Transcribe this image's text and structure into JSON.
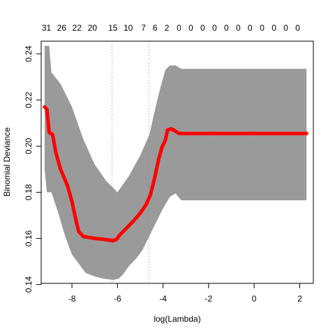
{
  "chart_data": {
    "type": "line",
    "title": "",
    "xlabel": "log(Lambda)",
    "ylabel": "Binomial Deviance",
    "xlim": [
      -9.35,
      2.6
    ],
    "ylim": [
      0.1405,
      0.2455
    ],
    "x_ticks": [
      -8,
      -6,
      -4,
      -2,
      0,
      2
    ],
    "x_tick_labels": [
      "-8",
      "-6",
      "-4",
      "-2",
      "0",
      "2"
    ],
    "y_ticks": [
      0.14,
      0.16,
      0.18,
      0.2,
      0.22,
      0.24
    ],
    "y_tick_labels": [
      "0.14",
      "0.16",
      "0.18",
      "0.20",
      "0.22",
      "0.24"
    ],
    "top_axis_labels": [
      {
        "x": -9.12,
        "label": "31"
      },
      {
        "x": -8.45,
        "label": "26"
      },
      {
        "x": -7.78,
        "label": "22"
      },
      {
        "x": -7.1,
        "label": "20"
      },
      {
        "x": -6.2,
        "label": "15"
      },
      {
        "x": -5.53,
        "label": "10"
      },
      {
        "x": -4.86,
        "label": "7"
      },
      {
        "x": -4.35,
        "label": "6"
      },
      {
        "x": -3.83,
        "label": "2"
      },
      {
        "x": -3.3,
        "label": "0"
      },
      {
        "x": -2.78,
        "label": "0"
      },
      {
        "x": -2.26,
        "label": "0"
      },
      {
        "x": -1.74,
        "label": "0"
      },
      {
        "x": -1.22,
        "label": "0"
      },
      {
        "x": -0.7,
        "label": "0"
      },
      {
        "x": -0.18,
        "label": "0"
      },
      {
        "x": 0.35,
        "label": "0"
      },
      {
        "x": 0.87,
        "label": "0"
      },
      {
        "x": 1.39,
        "label": "0"
      },
      {
        "x": 1.91,
        "label": "0"
      }
    ],
    "vlines": [
      -6.24,
      -4.62
    ],
    "band_upper": [
      [
        -9.2,
        0.2435
      ],
      [
        -9.0,
        0.2435
      ],
      [
        -8.9,
        0.232
      ],
      [
        -8.5,
        0.227
      ],
      [
        -8.0,
        0.217
      ],
      [
        -7.5,
        0.203
      ],
      [
        -7.0,
        0.192
      ],
      [
        -6.5,
        0.185
      ],
      [
        -6.0,
        0.18
      ],
      [
        -5.5,
        0.187
      ],
      [
        -5.0,
        0.196
      ],
      [
        -4.6,
        0.205
      ],
      [
        -4.3,
        0.218
      ],
      [
        -4.1,
        0.226
      ],
      [
        -3.9,
        0.233
      ],
      [
        -3.7,
        0.235
      ],
      [
        -3.45,
        0.235
      ],
      [
        -3.2,
        0.2335
      ],
      [
        -2.0,
        0.2335
      ],
      [
        0.0,
        0.2335
      ],
      [
        2.3,
        0.2335
      ]
    ],
    "band_lower": [
      [
        -9.2,
        0.19
      ],
      [
        -9.1,
        0.18
      ],
      [
        -8.9,
        0.18
      ],
      [
        -8.6,
        0.171
      ],
      [
        -8.3,
        0.161
      ],
      [
        -8.0,
        0.153
      ],
      [
        -7.7,
        0.149
      ],
      [
        -7.4,
        0.145
      ],
      [
        -7.0,
        0.1435
      ],
      [
        -6.6,
        0.1425
      ],
      [
        -6.2,
        0.142
      ],
      [
        -5.95,
        0.1425
      ],
      [
        -5.75,
        0.1445
      ],
      [
        -5.5,
        0.148
      ],
      [
        -5.2,
        0.151
      ],
      [
        -4.9,
        0.155
      ],
      [
        -4.6,
        0.161
      ],
      [
        -4.3,
        0.167
      ],
      [
        -4.0,
        0.173
      ],
      [
        -3.7,
        0.178
      ],
      [
        -3.45,
        0.1795
      ],
      [
        -3.2,
        0.1765
      ],
      [
        -2.0,
        0.1765
      ],
      [
        0.0,
        0.1765
      ],
      [
        2.3,
        0.1765
      ]
    ],
    "series": [
      {
        "values": [
          [
            -9.2,
            0.217
          ],
          [
            -9.1,
            0.216
          ],
          [
            -9.0,
            0.206
          ],
          [
            -8.85,
            0.205
          ],
          [
            -8.7,
            0.197
          ],
          [
            -8.5,
            0.19
          ],
          [
            -8.2,
            0.183
          ],
          [
            -8.0,
            0.176
          ],
          [
            -7.85,
            0.169
          ],
          [
            -7.7,
            0.163
          ],
          [
            -7.5,
            0.1608
          ],
          [
            -7.3,
            0.1605
          ],
          [
            -7.0,
            0.16
          ],
          [
            -6.7,
            0.1597
          ],
          [
            -6.4,
            0.1593
          ],
          [
            -6.2,
            0.159
          ],
          [
            -6.05,
            0.1595
          ],
          [
            -5.9,
            0.1615
          ],
          [
            -5.6,
            0.1645
          ],
          [
            -5.3,
            0.1675
          ],
          [
            -5.0,
            0.171
          ],
          [
            -4.75,
            0.1745
          ],
          [
            -4.55,
            0.179
          ],
          [
            -4.35,
            0.187
          ],
          [
            -4.2,
            0.194
          ],
          [
            -4.05,
            0.1995
          ],
          [
            -3.9,
            0.2025
          ],
          [
            -3.8,
            0.207
          ],
          [
            -3.65,
            0.2075
          ],
          [
            -3.5,
            0.2068
          ],
          [
            -3.3,
            0.2055
          ],
          [
            -2.0,
            0.2055
          ],
          [
            0.0,
            0.2055
          ],
          [
            2.3,
            0.2055
          ]
        ],
        "color": "#ff0000"
      }
    ],
    "band_color": "#9a9a9a",
    "vline_color": "#8a8a8a",
    "grid": false
  }
}
